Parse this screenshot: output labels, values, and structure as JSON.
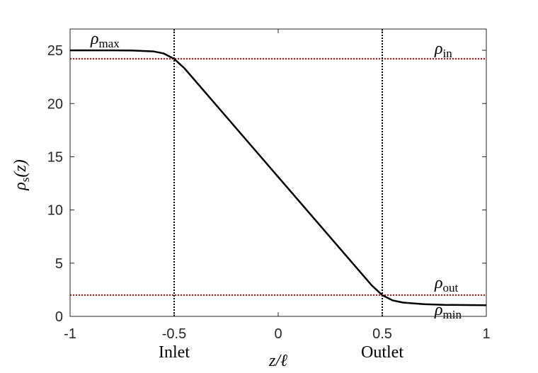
{
  "chart_data": {
    "type": "line",
    "xlabel": "z/ℓ",
    "ylabel": [
      "ρ",
      "s",
      "(z)"
    ],
    "x": [
      -1,
      -0.8,
      -0.7,
      -0.6,
      -0.55,
      -0.5,
      -0.45,
      0,
      0.45,
      0.5,
      0.55,
      0.6,
      0.7,
      0.8,
      1
    ],
    "series": [
      {
        "color": "#000000",
        "values": [
          25,
          25,
          24.98,
          24.9,
          24.7,
          24.2,
          23.3,
          13.1,
          2.9,
          2.0,
          1.5,
          1.3,
          1.15,
          1.08,
          1.05
        ]
      }
    ],
    "xlim": [
      -1,
      1
    ],
    "xticks": [
      -1,
      -0.5,
      0,
      0.5,
      1
    ],
    "ylim": [
      0,
      27
    ],
    "yticks": [
      0,
      5,
      10,
      15,
      20,
      25
    ],
    "hlines": [
      {
        "value": 24.2,
        "color": "#c00000"
      },
      {
        "value": 2.0,
        "color": "#c00000"
      }
    ],
    "vlines": [
      {
        "value": -0.5,
        "label": "Inlet",
        "color": "#000000"
      },
      {
        "value": 0.5,
        "label": "Outlet",
        "color": "#000000"
      }
    ],
    "annotations": [
      {
        "symbol": "ρ",
        "subscript": "max"
      },
      {
        "symbol": "ρ",
        "subscript": "in"
      },
      {
        "symbol": "ρ",
        "subscript": "out"
      },
      {
        "symbol": "ρ",
        "subscript": "min"
      }
    ]
  }
}
